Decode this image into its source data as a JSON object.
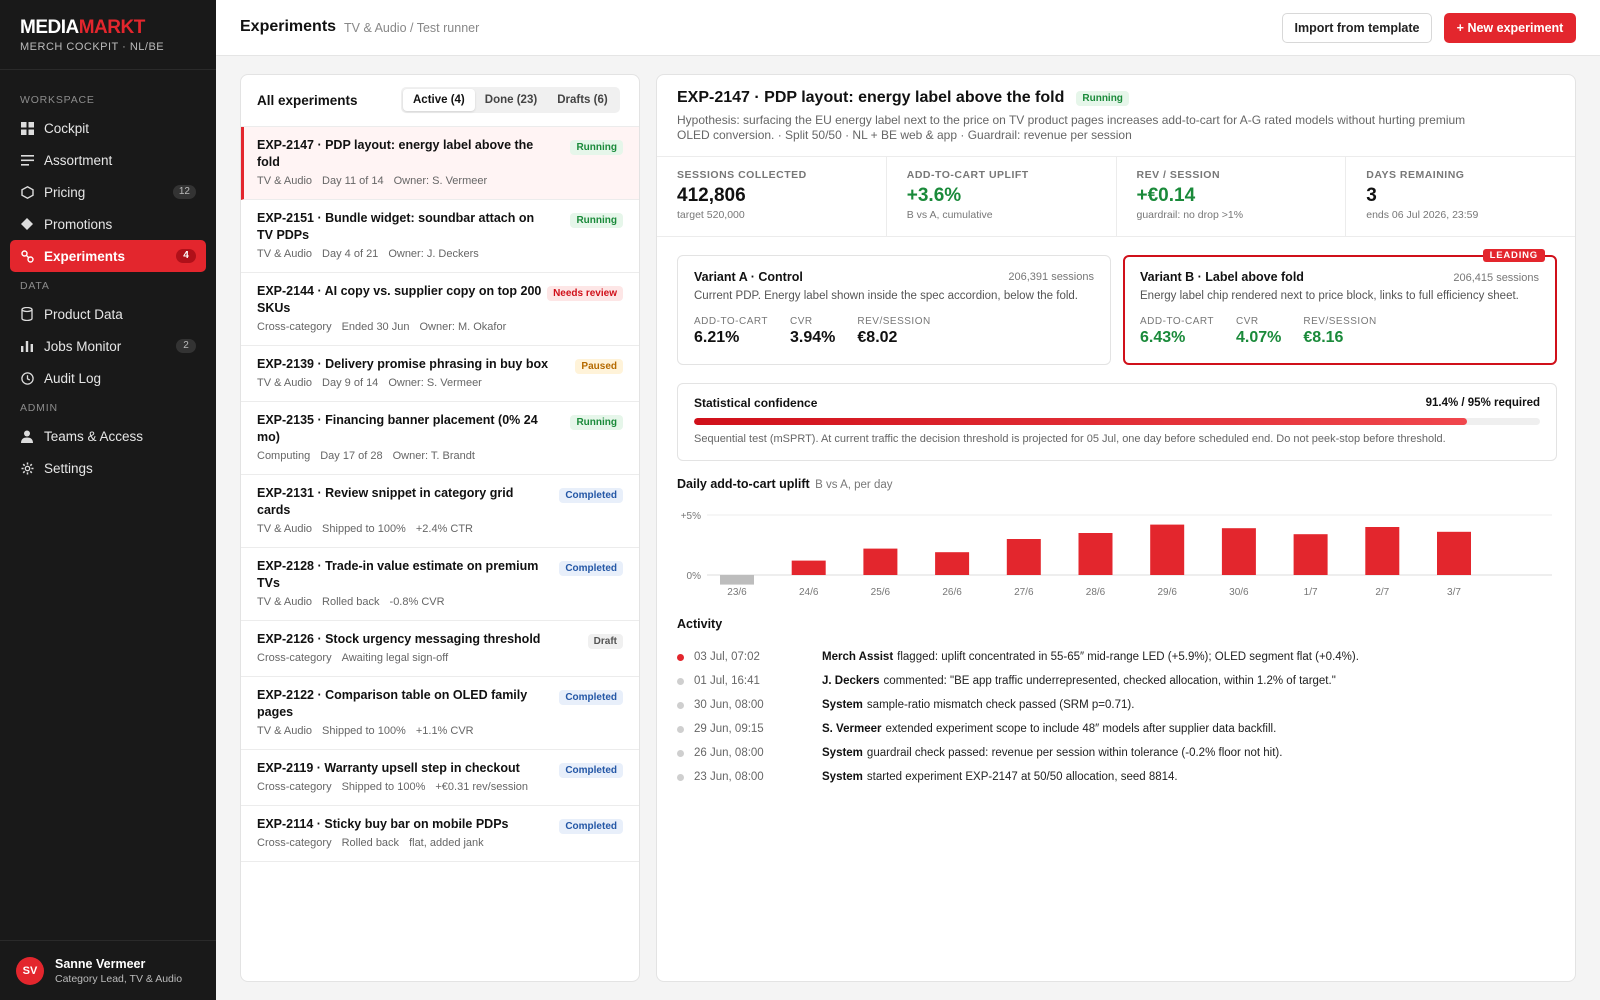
{
  "brand": {
    "logo_a": "MEDIA",
    "logo_b": "MARKT",
    "subtitle": "MERCH COCKPIT · NL/BE"
  },
  "sidebar": {
    "sections": {
      "workspace": "WORKSPACE",
      "data": "DATA",
      "admin": "ADMIN"
    },
    "items": [
      {
        "label": "Cockpit",
        "icon": "grid-icon"
      },
      {
        "label": "Assortment",
        "icon": "list-icon"
      },
      {
        "label": "Pricing",
        "icon": "tag-icon",
        "count": "12"
      },
      {
        "label": "Promotions",
        "icon": "diamond-icon"
      },
      {
        "label": "Experiments",
        "icon": "flask-icon",
        "count": "4",
        "active": true
      },
      {
        "label": "Product Data",
        "icon": "database-icon"
      },
      {
        "label": "Jobs Monitor",
        "icon": "bar-chart-icon",
        "count": "2"
      },
      {
        "label": "Audit Log",
        "icon": "clock-icon"
      },
      {
        "label": "Teams & Access",
        "icon": "user-icon"
      },
      {
        "label": "Settings",
        "icon": "gear-icon"
      }
    ]
  },
  "user": {
    "initials": "SV",
    "name": "Sanne Vermeer",
    "role": "Category Lead, TV & Audio"
  },
  "header": {
    "title": "Experiments",
    "breadcrumb": "TV & Audio / Test runner",
    "import_label": "Import from template",
    "new_label": "+ New experiment"
  },
  "list": {
    "heading": "All experiments",
    "tabs": [
      "Active (4)",
      "Done (23)",
      "Drafts (6)"
    ],
    "items": [
      {
        "title": "EXP-2147 · PDP layout: energy label above the fold",
        "meta": [
          "TV & Audio",
          "Day 11 of 14",
          "Owner: S. Vermeer"
        ],
        "status": "Running"
      },
      {
        "title": "EXP-2151 · Bundle widget: soundbar attach on TV PDPs",
        "meta": [
          "TV & Audio",
          "Day 4 of 21",
          "Owner: J. Deckers"
        ],
        "status": "Running"
      },
      {
        "title": "EXP-2144 · AI copy vs. supplier copy on top 200 SKUs",
        "meta": [
          "Cross-category",
          "Ended 30 Jun",
          "Owner: M. Okafor"
        ],
        "status": "Needs review"
      },
      {
        "title": "EXP-2139 · Delivery promise phrasing in buy box",
        "meta": [
          "TV & Audio",
          "Day 9 of 14",
          "Owner: S. Vermeer"
        ],
        "status": "Paused"
      },
      {
        "title": "EXP-2135 · Financing banner placement (0% 24 mo)",
        "meta": [
          "Computing",
          "Day 17 of 28",
          "Owner: T. Brandt"
        ],
        "status": "Running"
      },
      {
        "title": "EXP-2131 · Review snippet in category grid cards",
        "meta": [
          "TV & Audio",
          "Shipped to 100%",
          "+2.4% CTR"
        ],
        "status": "Completed"
      },
      {
        "title": "EXP-2128 · Trade-in value estimate on premium TVs",
        "meta": [
          "TV & Audio",
          "Rolled back",
          "-0.8% CVR"
        ],
        "status": "Completed"
      },
      {
        "title": "EXP-2126 · Stock urgency messaging threshold",
        "meta": [
          "Cross-category",
          "Awaiting legal sign-off"
        ],
        "status": "Draft"
      },
      {
        "title": "EXP-2122 · Comparison table on OLED family pages",
        "meta": [
          "TV & Audio",
          "Shipped to 100%",
          "+1.1% CVR"
        ],
        "status": "Completed"
      },
      {
        "title": "EXP-2119 · Warranty upsell step in checkout",
        "meta": [
          "Cross-category",
          "Shipped to 100%",
          "+€0.31 rev/session"
        ],
        "status": "Completed"
      },
      {
        "title": "EXP-2114 · Sticky buy bar on mobile PDPs",
        "meta": [
          "Cross-category",
          "Rolled back",
          "flat, added jank"
        ],
        "status": "Completed"
      }
    ]
  },
  "detail": {
    "title": "EXP-2147 · PDP layout: energy label above the fold",
    "status": "Running",
    "hypothesis": "Hypothesis: surfacing the EU energy label next to the price on TV product pages increases add-to-cart for A-G rated models without hurting premium OLED conversion. · Split 50/50 · NL + BE web & app · Guardrail: revenue per session",
    "kpis": [
      {
        "label": "SESSIONS COLLECTED",
        "value": "412,806",
        "sub": "target 520,000",
        "green": false
      },
      {
        "label": "ADD-TO-CART UPLIFT",
        "value": "+3.6%",
        "sub": "B vs A, cumulative",
        "green": true
      },
      {
        "label": "REV / SESSION",
        "value": "+€0.14",
        "sub": "guardrail: no drop >1%",
        "green": true
      },
      {
        "label": "DAYS REMAINING",
        "value": "3",
        "sub": "ends 06 Jul 2026, 23:59",
        "green": false
      }
    ],
    "variant_a": {
      "name": "Variant A · Control",
      "sessions": "206,391 sessions",
      "desc": "Current PDP. Energy label shown inside the spec accordion, below the fold.",
      "m1_label": "ADD-TO-CART",
      "m1": "6.21%",
      "m2_label": "CVR",
      "m2": "3.94%",
      "m3_label": "REV/SESSION",
      "m3": "€8.02"
    },
    "variant_b": {
      "name": "Variant B · Label above fold",
      "sessions": "206,415 sessions",
      "desc": "Energy label chip rendered next to price block, links to full efficiency sheet.",
      "tag": "LEADING",
      "m1_label": "ADD-TO-CART",
      "m1": "6.43%",
      "m2_label": "CVR",
      "m2": "4.07%",
      "m3_label": "REV/SESSION",
      "m3": "€8.16"
    },
    "confidence": {
      "title": "Statistical confidence",
      "value": "91.4% / 95% required",
      "fill": 0.914,
      "note": "Sequential test (mSPRT). At current traffic the decision threshold is projected for 05 Jul, one day before scheduled end. Do not peek-stop before threshold."
    },
    "chart_title": "Daily add-to-cart uplift",
    "chart_subtitle": "B vs A, per day",
    "activity_title": "Activity",
    "activity": [
      {
        "time": "03 Jul, 07:02",
        "who": "Merch Assist",
        "msg": "flagged: uplift concentrated in 55-65″ mid-range LED (+5.9%); OLED segment flat (+0.4%).",
        "hot": true
      },
      {
        "time": "01 Jul, 16:41",
        "who": "J. Deckers",
        "msg": "commented: \"BE app traffic underrepresented, checked allocation, within 1.2% of target.\"",
        "hot": false
      },
      {
        "time": "30 Jun, 08:00",
        "who": "System",
        "msg": "sample-ratio mismatch check passed (SRM p=0.71).",
        "hot": false
      },
      {
        "time": "29 Jun, 09:15",
        "who": "S. Vermeer",
        "msg": "extended experiment scope to include 48″ models after supplier data backfill.",
        "hot": false
      },
      {
        "time": "26 Jun, 08:00",
        "who": "System",
        "msg": "guardrail check passed: revenue per session within tolerance (-0.2% floor not hit).",
        "hot": false
      },
      {
        "time": "23 Jun, 08:00",
        "who": "System",
        "msg": "started experiment EXP-2147 at 50/50 allocation, seed 8814.",
        "hot": false
      }
    ]
  },
  "colors": {
    "accent": "#e3262d",
    "positive": "#1a8a3a",
    "negative_bar": "#bdbdbd",
    "sidebar_bg": "#191919"
  },
  "chart_data": {
    "type": "bar",
    "title": "Daily add-to-cart uplift",
    "subtitle": "B vs A, per day",
    "categories": [
      "23/6",
      "24/6",
      "25/6",
      "26/6",
      "27/6",
      "28/6",
      "29/6",
      "30/6",
      "1/7",
      "2/7",
      "3/7"
    ],
    "values": [
      -0.8,
      1.2,
      2.2,
      1.9,
      3.0,
      3.5,
      4.2,
      3.9,
      3.4,
      4.0,
      3.6
    ],
    "yticks": [
      "0%",
      "+5%"
    ],
    "ylim": [
      -1,
      5
    ],
    "grid": true
  }
}
